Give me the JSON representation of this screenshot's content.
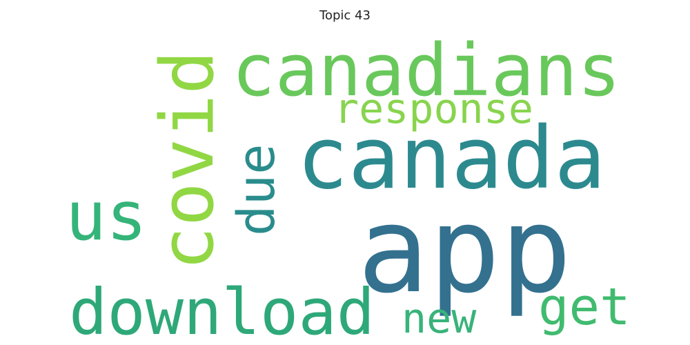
{
  "chart_data": {
    "type": "wordcloud",
    "title": "Topic 43",
    "words": [
      {
        "text": "app",
        "weight": 1.0,
        "color": "#33718f",
        "orientation": "horizontal"
      },
      {
        "text": "canada",
        "weight": 0.72,
        "color": "#2c8a8f",
        "orientation": "horizontal"
      },
      {
        "text": "canadians",
        "weight": 0.6,
        "color": "#69c85b",
        "orientation": "horizontal"
      },
      {
        "text": "covid",
        "weight": 0.62,
        "color": "#91d744",
        "orientation": "vertical"
      },
      {
        "text": "us",
        "weight": 0.55,
        "color": "#35b479",
        "orientation": "horizontal"
      },
      {
        "text": "download",
        "weight": 0.52,
        "color": "#2ea879",
        "orientation": "horizontal"
      },
      {
        "text": "due",
        "weight": 0.42,
        "color": "#2a8c8c",
        "orientation": "vertical"
      },
      {
        "text": "response",
        "weight": 0.36,
        "color": "#88d44e",
        "orientation": "horizontal"
      },
      {
        "text": "get",
        "weight": 0.34,
        "color": "#40bb6f",
        "orientation": "horizontal"
      },
      {
        "text": "new",
        "weight": 0.28,
        "color": "#38b37a",
        "orientation": "horizontal"
      }
    ]
  }
}
